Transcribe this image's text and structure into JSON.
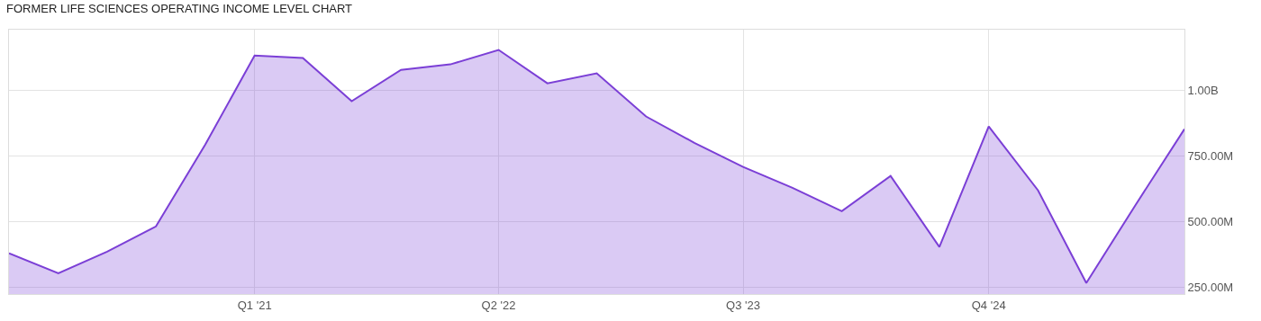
{
  "chart_data": {
    "type": "area",
    "title": "FORMER LIFE SCIENCES OPERATING INCOME LEVEL CHART",
    "x": [
      "2019-10",
      "2020-01",
      "2020-04",
      "2020-07",
      "2020-10",
      "2021-01",
      "2021-04",
      "2021-07",
      "2021-10",
      "2022-01",
      "2022-04",
      "2022-07",
      "2022-10",
      "2023-01",
      "2023-04",
      "2023-07",
      "2023-10",
      "2024-01",
      "2024-04",
      "2024-07",
      "2024-10",
      "2025-01",
      "2025-04",
      "2025-07",
      "2025-10"
    ],
    "series": [
      {
        "color": "#7b3fd6",
        "values": [
          380000000,
          304000000,
          386000000,
          482000000,
          793000000,
          1132000000,
          1122000000,
          958000000,
          1077000000,
          1098000000,
          1153000000,
          1026000000,
          1064000000,
          900000000,
          800000000,
          708000000,
          629000000,
          540000000,
          674000000,
          404000000,
          862000000,
          619000000,
          267000000,
          561000000,
          852000000
        ]
      }
    ],
    "xlim": [
      "2019-10",
      "2025-10"
    ],
    "xticks": [
      {
        "value": "2021-01",
        "label": "Q1 '21"
      },
      {
        "value": "2022-04",
        "label": "Q2 '22"
      },
      {
        "value": "2023-07",
        "label": "Q3 '23"
      },
      {
        "value": "2024-10",
        "label": "Q4 '24"
      }
    ],
    "ylim": [
      225000000,
      1230000000
    ],
    "yticks": [
      {
        "value": 250000000,
        "label": "250.00M"
      },
      {
        "value": 500000000,
        "label": "500.00M"
      },
      {
        "value": 750000000,
        "label": "750.00M"
      },
      {
        "value": 1000000000,
        "label": "1.00B"
      }
    ],
    "grid": true,
    "marker": "none",
    "line_style": "solid"
  }
}
